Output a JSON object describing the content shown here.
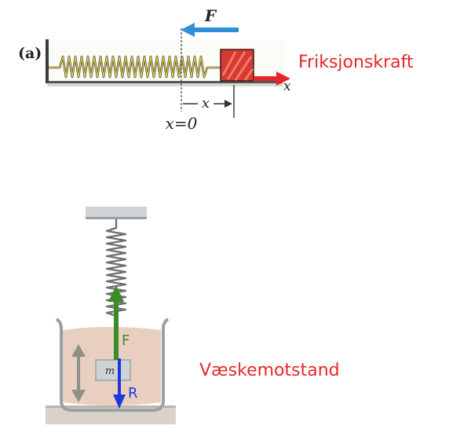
{
  "top_figure": {
    "panel_label": "(a)",
    "force_label": "F",
    "displacement_label": "x",
    "origin_label": "x=0",
    "axis_label": "x",
    "friction_label": "Friksjonskraft"
  },
  "bottom_figure": {
    "mass_label": "m",
    "spring_force_label": "F",
    "resistance_label": "R",
    "fluid_label": "Væskemotstand"
  },
  "colors": {
    "friction_text": "#e8262a",
    "friction_arrow": "#e8262a",
    "force_arrow": "#2f8fd8",
    "spring_coil": "#d8c84a",
    "block": "#d73a30",
    "green_arrow": "#3d8a2a",
    "blue_arrow": "#1b38e0",
    "fluid": "#e9cfc0"
  }
}
